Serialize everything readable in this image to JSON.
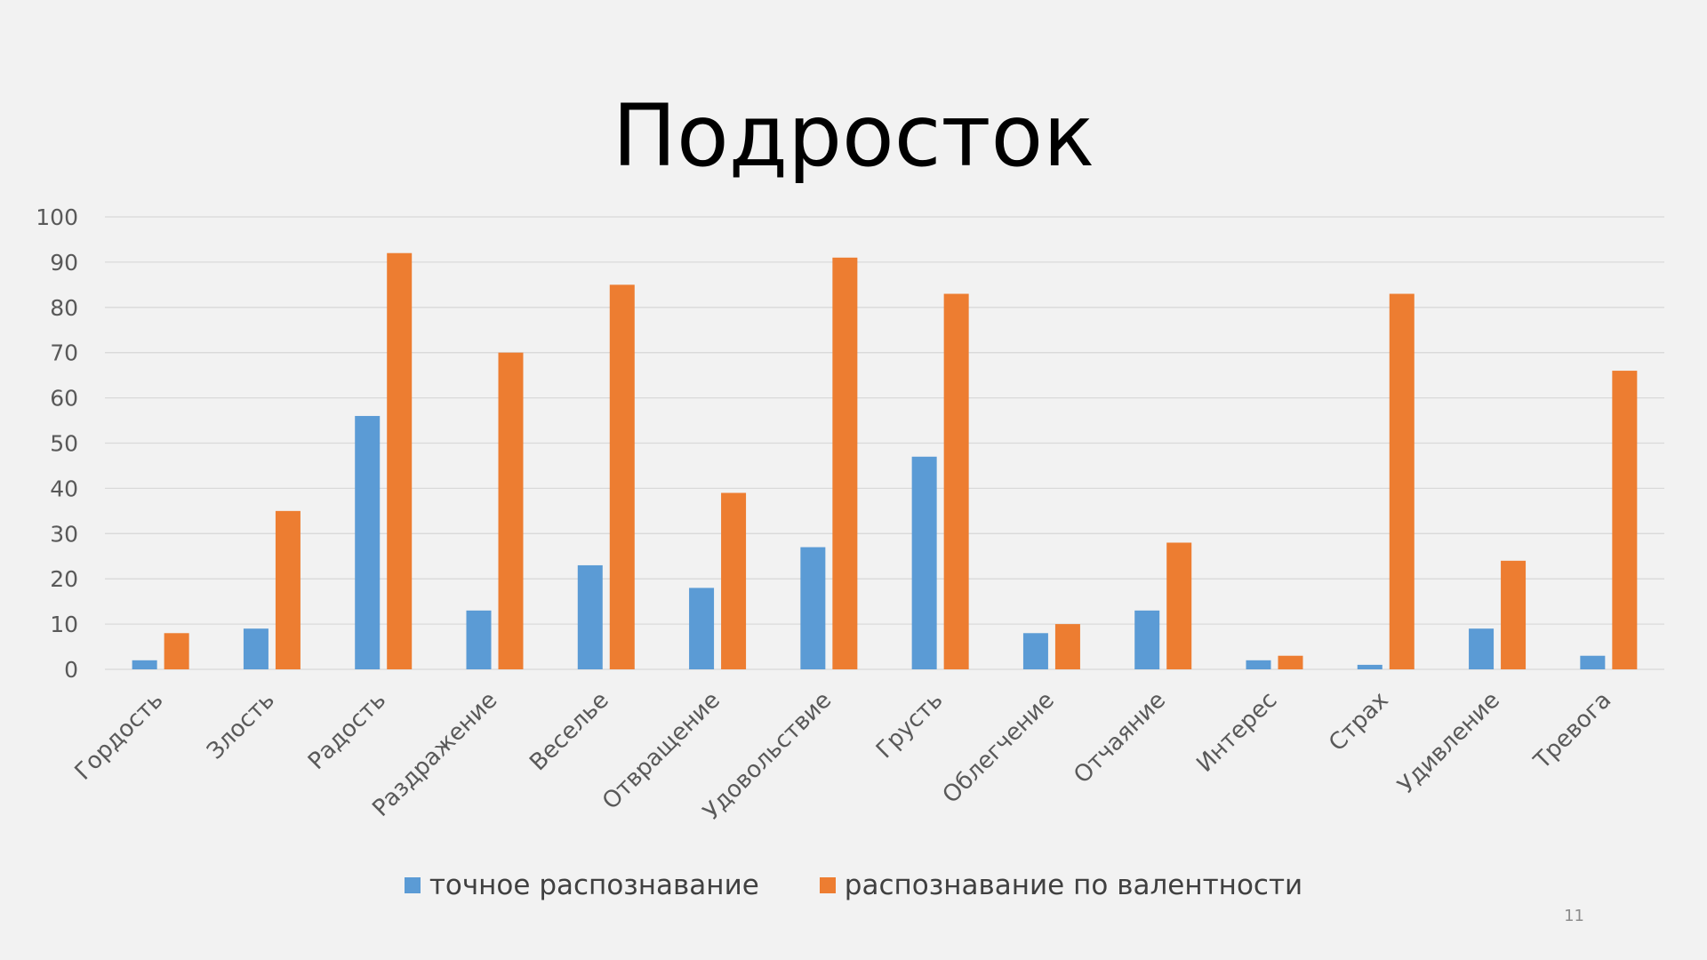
{
  "slide": {
    "title": "Подросток",
    "page_number": "11"
  },
  "colors": {
    "background": "#f2f2f2",
    "series_exact": "#5b9bd5",
    "series_valence": "#ed7d31",
    "gridline": "#d9d9d9",
    "tick_text": "#595959"
  },
  "chart_data": {
    "type": "bar",
    "title": "Подросток",
    "xlabel": "",
    "ylabel": "",
    "ylim": [
      0,
      100
    ],
    "yticks": [
      0,
      10,
      20,
      30,
      40,
      50,
      60,
      70,
      80,
      90,
      100
    ],
    "grid": true,
    "legend_position": "bottom",
    "categories": [
      "Гордость",
      "Злость",
      "Радость",
      "Раздражение",
      "Веселье",
      "Отвращение",
      "Удовольствие",
      "Грусть",
      "Облегчение",
      "Отчаяние",
      "Интерес",
      "Страх",
      "Удивление",
      "Тревога"
    ],
    "series": [
      {
        "name": "точное распознавание",
        "color": "#5b9bd5",
        "values": [
          2,
          9,
          56,
          13,
          23,
          18,
          27,
          47,
          8,
          13,
          2,
          1,
          9,
          3
        ]
      },
      {
        "name": "распознавание по валентности",
        "color": "#ed7d31",
        "values": [
          8,
          35,
          92,
          70,
          85,
          39,
          91,
          83,
          10,
          28,
          3,
          83,
          24,
          66
        ]
      }
    ]
  }
}
